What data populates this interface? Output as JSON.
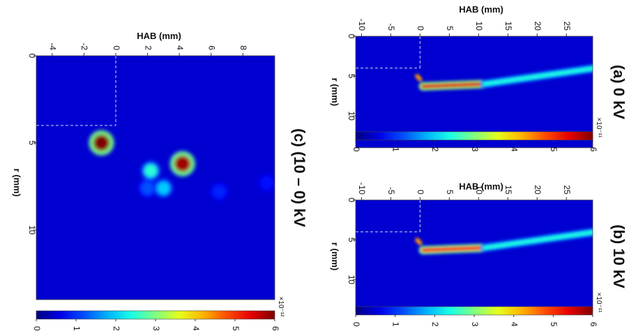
{
  "chart_data": [
    {
      "type": "heatmap",
      "title": "(a) 0 kV",
      "xlabel": "HAB (mm)",
      "ylabel": "r (mm)",
      "x_ticks": [
        -10,
        -5,
        0,
        5,
        10,
        15,
        20,
        25
      ],
      "y_ticks": [
        0,
        5,
        10
      ],
      "xlim": [
        -11,
        29.5
      ],
      "ylim": [
        0,
        14
      ],
      "colorbar": {
        "ticks": [
          0,
          1,
          2,
          3,
          4,
          5,
          6
        ],
        "multiplier": "×10⁻¹¹",
        "range": [
          0,
          6
        ]
      },
      "reference_lines": {
        "HAB": 0,
        "r": 4
      },
      "features": [
        {
          "kind": "peak",
          "HAB": [
            -0.5,
            0.0
          ],
          "r": [
            5.0,
            5.4
          ],
          "level": 4.2
        },
        {
          "kind": "band",
          "HAB": [
            0.5,
            11.0
          ],
          "r": [
            6.3,
            6.0
          ],
          "level": 5.4
        },
        {
          "kind": "band",
          "HAB": [
            11.0,
            30.0
          ],
          "r": [
            6.0,
            4.0
          ],
          "level": 2.1
        }
      ]
    },
    {
      "type": "heatmap",
      "title": "(b) 10 kV",
      "xlabel": "HAB (mm)",
      "ylabel": "r (mm)",
      "x_ticks": [
        -10,
        -5,
        0,
        5,
        10,
        15,
        20,
        25
      ],
      "y_ticks": [
        0,
        5,
        10
      ],
      "xlim": [
        -11,
        29.5
      ],
      "ylim": [
        0,
        14
      ],
      "colorbar": {
        "ticks": [
          0,
          1,
          2,
          3,
          4,
          5,
          6
        ],
        "multiplier": "×10⁻¹¹",
        "range": [
          0,
          6
        ]
      },
      "reference_lines": {
        "HAB": 0,
        "r": 4
      },
      "features": [
        {
          "kind": "peak",
          "HAB": [
            -0.5,
            0.0
          ],
          "r": [
            5.0,
            5.4
          ],
          "level": 4.2
        },
        {
          "kind": "band",
          "HAB": [
            0.5,
            11.0
          ],
          "r": [
            6.3,
            6.0
          ],
          "level": 5.2
        },
        {
          "kind": "band",
          "HAB": [
            11.0,
            30.0
          ],
          "r": [
            6.0,
            4.0
          ],
          "level": 2.1
        }
      ]
    },
    {
      "type": "heatmap",
      "title": "(c) (10 – 0) kV",
      "xlabel": "HAB (mm)",
      "ylabel": "r (mm)",
      "x_ticks": [
        -4,
        -2,
        0,
        2,
        4,
        6,
        8
      ],
      "y_ticks": [
        0,
        5,
        10
      ],
      "xlim": [
        -5,
        10
      ],
      "ylim": [
        0,
        14
      ],
      "colorbar": {
        "ticks": [
          0,
          1,
          2,
          3,
          4,
          5,
          6
        ],
        "multiplier": "×10⁻¹²",
        "range": [
          0,
          6
        ]
      },
      "reference_lines": {
        "HAB": 0,
        "r": 4
      },
      "features": [
        {
          "kind": "peak",
          "HAB": -0.9,
          "r": 5.0,
          "level": 6.0
        },
        {
          "kind": "peak",
          "HAB": 4.2,
          "r": 6.2,
          "level": 5.8
        },
        {
          "kind": "peak",
          "HAB": 2.2,
          "r": 6.6,
          "level": 2.2
        },
        {
          "kind": "peak",
          "HAB": 3.0,
          "r": 7.6,
          "level": 1.6
        },
        {
          "kind": "peak",
          "HAB": 2.0,
          "r": 7.6,
          "level": 0.8
        },
        {
          "kind": "peak",
          "HAB": 6.5,
          "r": 7.8,
          "level": 0.5
        },
        {
          "kind": "peak",
          "HAB": 9.5,
          "r": 7.3,
          "level": 0.4
        }
      ]
    }
  ]
}
